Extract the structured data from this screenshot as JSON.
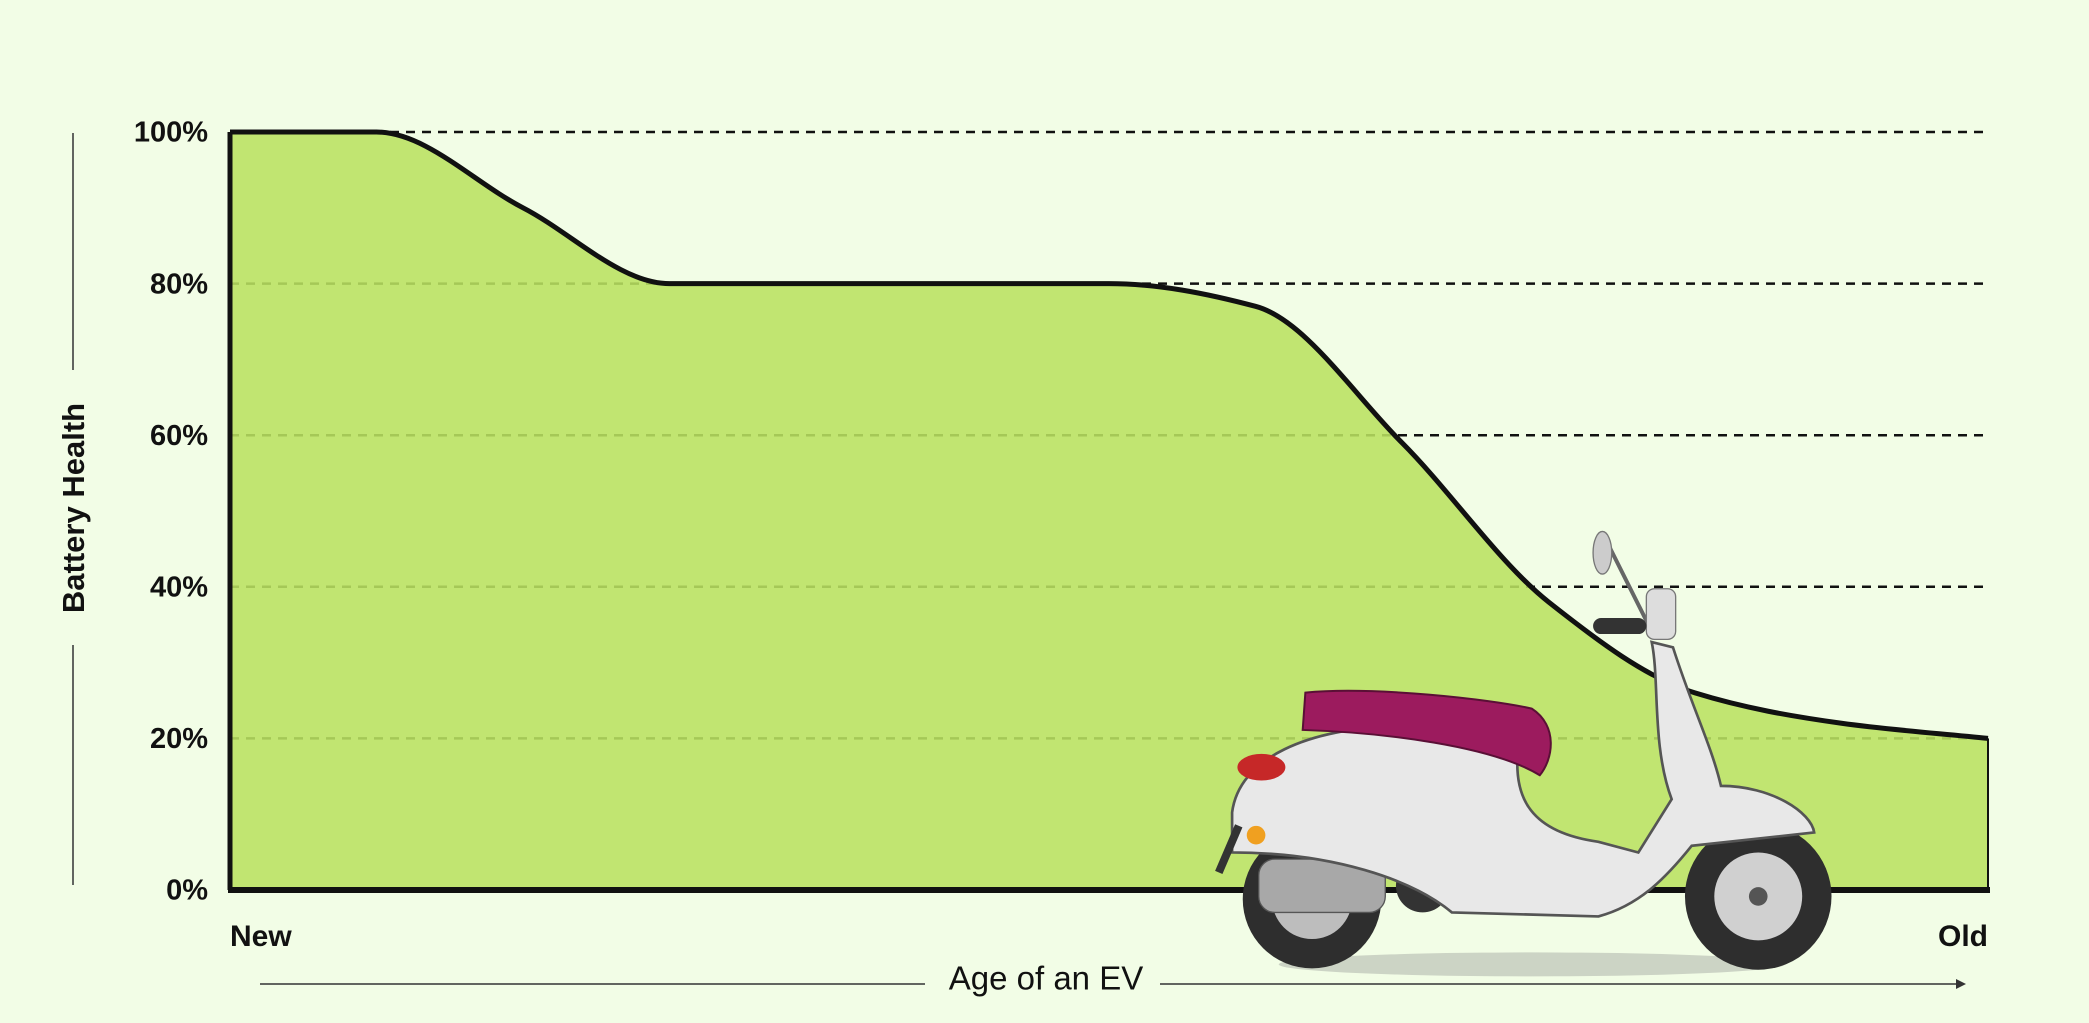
{
  "chart_data": {
    "type": "area",
    "ylabel": "Battery Health",
    "xlabel": "Age of an EV",
    "categories": [
      "New",
      null,
      null,
      null,
      null,
      null,
      null,
      null,
      null,
      null,
      null,
      null,
      "Old"
    ],
    "values": [
      100,
      100,
      90,
      80,
      80,
      80,
      80,
      77,
      59,
      38,
      26,
      22,
      20
    ],
    "color": "#b9e161",
    "ylim": [
      0,
      100
    ],
    "yticks": [
      {
        "value": 0,
        "label": "0%"
      },
      {
        "value": 20,
        "label": "20%"
      },
      {
        "value": 40,
        "label": "40%"
      },
      {
        "value": 60,
        "label": "60%"
      },
      {
        "value": 80,
        "label": "80%"
      },
      {
        "value": 100,
        "label": "100%"
      }
    ],
    "grid": true
  }
}
